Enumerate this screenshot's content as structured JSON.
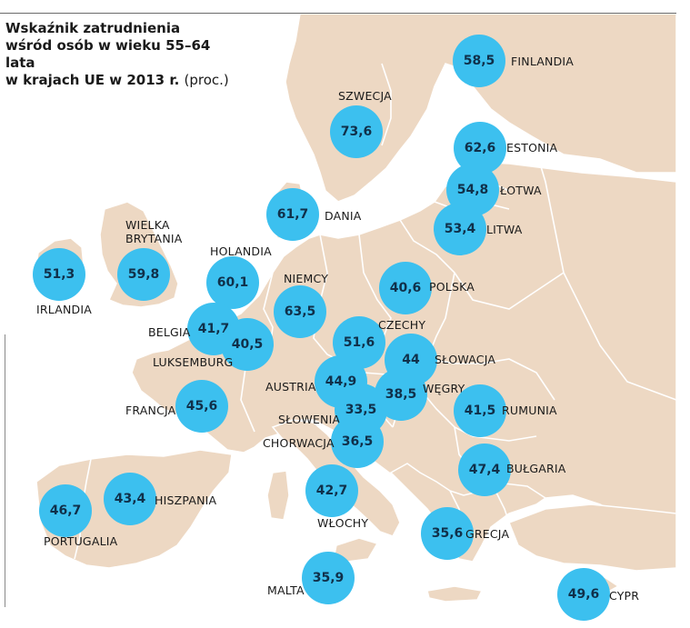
{
  "title": {
    "line1": "Wskaźnik zatrudnienia",
    "line2": "wśród osób w wieku 55–64 lata",
    "line3": "w krajach UE w 2013 r.",
    "unit": "(proc.)"
  },
  "colors": {
    "land": "#edd8c3",
    "border": "#ffffff",
    "sea": "#ffffff",
    "accent": "#3cc0ef",
    "value_text": "#10304a"
  },
  "countries": [
    {
      "id": "finlandia",
      "name": "FINLANDIA",
      "value": "58,5"
    },
    {
      "id": "szwecja",
      "name": "SZWECJA",
      "value": "73,6"
    },
    {
      "id": "estonia",
      "name": "ESTONIA",
      "value": "62,6"
    },
    {
      "id": "lotwa",
      "name": "ŁOTWA",
      "value": "54,8"
    },
    {
      "id": "litwa",
      "name": "LITWA",
      "value": "53,4"
    },
    {
      "id": "dania",
      "name": "DANIA",
      "value": "61,7"
    },
    {
      "id": "irlandia",
      "name": "IRLANDIA",
      "value": "51,3"
    },
    {
      "id": "wielka-brytania",
      "name": "WIELKA\nBRYTANIA",
      "value": "59,8"
    },
    {
      "id": "holandia",
      "name": "HOLANDIA",
      "value": "60,1"
    },
    {
      "id": "niemcy",
      "name": "NIEMCY",
      "value": "63,5"
    },
    {
      "id": "polska",
      "name": "POLSKA",
      "value": "40,6"
    },
    {
      "id": "belgia",
      "name": "BELGIA",
      "value": "41,7"
    },
    {
      "id": "luksemburg",
      "name": "LUKSEMBURG",
      "value": "40,5"
    },
    {
      "id": "czechy",
      "name": "CZECHY",
      "value": "51,6"
    },
    {
      "id": "slowacja",
      "name": "SŁOWACJA",
      "value": "44"
    },
    {
      "id": "austria",
      "name": "AUSTRIA",
      "value": "44,9"
    },
    {
      "id": "wegry",
      "name": "WĘGRY",
      "value": "38,5"
    },
    {
      "id": "francja",
      "name": "FRANCJA",
      "value": "45,6"
    },
    {
      "id": "slowenia",
      "name": "SŁOWENIA",
      "value": "33,5"
    },
    {
      "id": "rumunia",
      "name": "RUMUNIA",
      "value": "41,5"
    },
    {
      "id": "chorwacja",
      "name": "CHORWACJA",
      "value": "36,5"
    },
    {
      "id": "bulgaria",
      "name": "BUŁGARIA",
      "value": "47,4"
    },
    {
      "id": "portugalia",
      "name": "PORTUGALIA",
      "value": "46,7"
    },
    {
      "id": "hiszpania",
      "name": "HISZPANIA",
      "value": "43,4"
    },
    {
      "id": "wlochy",
      "name": "WŁOCHY",
      "value": "42,7"
    },
    {
      "id": "grecja",
      "name": "GRECJA",
      "value": "35,6"
    },
    {
      "id": "malta",
      "name": "MALTA",
      "value": "35,9"
    },
    {
      "id": "cypr",
      "name": "CYPR",
      "value": "49,6"
    }
  ]
}
